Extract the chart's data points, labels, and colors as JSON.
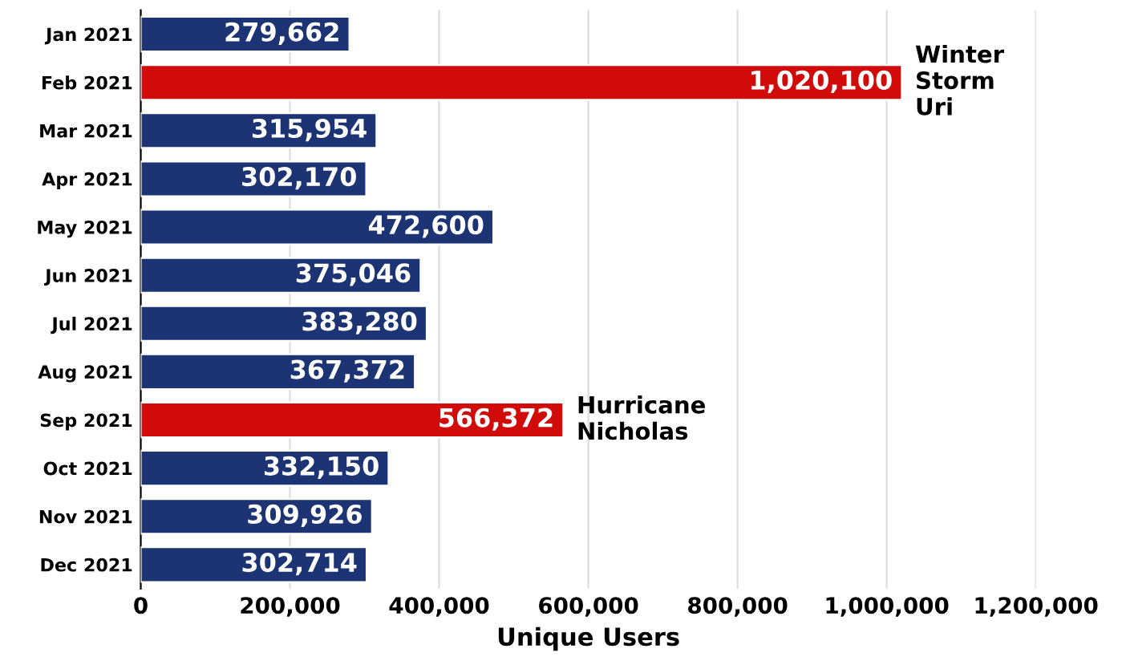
{
  "chart_data": {
    "type": "bar",
    "orientation": "horizontal",
    "xlabel": "Unique Users",
    "categories": [
      "Jan 2021",
      "Feb 2021",
      "Mar 2021",
      "Apr 2021",
      "May 2021",
      "Jun 2021",
      "Jul 2021",
      "Aug 2021",
      "Sep 2021",
      "Oct 2021",
      "Nov 2021",
      "Dec 2021"
    ],
    "values": [
      279662,
      1020100,
      315954,
      302170,
      472600,
      375046,
      383280,
      367372,
      566372,
      332150,
      309926,
      302714
    ],
    "colors": [
      "#1c3473",
      "#d10a0a",
      "#1c3473",
      "#1c3473",
      "#1c3473",
      "#1c3473",
      "#1c3473",
      "#1c3473",
      "#d10a0a",
      "#1c3473",
      "#1c3473",
      "#1c3473"
    ],
    "value_labels": [
      "279,662",
      "1,020,100",
      "315,954",
      "302,170",
      "472,600",
      "375,046",
      "383,280",
      "367,372",
      "566,372",
      "332,150",
      "309,926",
      "302,714"
    ],
    "xlim": [
      0,
      1200000
    ],
    "xticks": [
      {
        "value": 0,
        "label": "0"
      },
      {
        "value": 200000,
        "label": "200,000"
      },
      {
        "value": 400000,
        "label": "400,000"
      },
      {
        "value": 600000,
        "label": "600,000"
      },
      {
        "value": 800000,
        "label": "800,000"
      },
      {
        "value": 1000000,
        "label": "1,000,000"
      },
      {
        "value": 1200000,
        "label": "1,200,000"
      }
    ],
    "grid": "x",
    "legend": false,
    "annotations": [
      {
        "text": "Winter\nStorm\nUri",
        "x": 1020100,
        "y": "Feb 2021"
      },
      {
        "text": "Hurricane\nNicholas",
        "x": 566372,
        "y": "Sep 2021"
      }
    ]
  }
}
